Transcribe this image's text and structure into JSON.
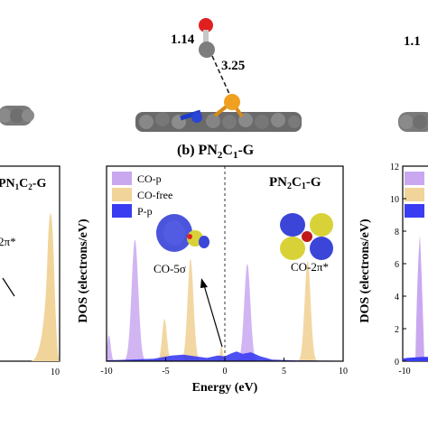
{
  "structure": {
    "bond_co": "1.14",
    "distance": "3.25",
    "bond_co_right": "1.1"
  },
  "left_panel": {
    "title_prefix": "PN",
    "title_sub1": "1",
    "title_mid": "C",
    "title_sub2": "2",
    "title_suffix": "-G",
    "orbital_label_fragment": "2π*",
    "x_tick_10": "10"
  },
  "right_panel": {
    "y_ticks": [
      "12",
      "10",
      "8",
      "6",
      "4",
      "2",
      "0"
    ],
    "y_label": "DOS (electrons/eV)",
    "x_ticks": [
      "-10"
    ]
  },
  "chart_data": {
    "type": "area",
    "panel_caption": {
      "prefix": "(b) PN",
      "sub1": "2",
      "mid": "C",
      "sub2": "1",
      "suffix": "-G"
    },
    "inset_title": {
      "prefix": "PN",
      "sub1": "2",
      "mid": "C",
      "sub2": "1",
      "suffix": "-G"
    },
    "xlabel": "Energy (eV)",
    "ylabel": "DOS (electrons/eV)",
    "xlim": [
      -10,
      10
    ],
    "ylim": [
      0,
      12
    ],
    "x_ticks": [
      -10,
      -5,
      0,
      5,
      10
    ],
    "y_ticks": [
      0,
      2,
      4,
      6,
      8,
      10,
      12
    ],
    "fermi_level": 0,
    "legend_position": "top-left",
    "series": [
      {
        "name": "CO-p",
        "color": "#c9a8f0",
        "peaks": [
          {
            "center": -9.8,
            "height": 1.6,
            "width": 0.15
          },
          {
            "center": -7.6,
            "height": 7.5,
            "width": 0.28
          },
          {
            "center": -5.2,
            "height": 0.6,
            "width": 0.18
          },
          {
            "center": 1.9,
            "height": 6.0,
            "width": 0.26
          }
        ]
      },
      {
        "name": "CO-free",
        "color": "#f1d49a",
        "peaks": [
          {
            "center": -5.1,
            "height": 2.6,
            "width": 0.2
          },
          {
            "center": -2.9,
            "height": 6.3,
            "width": 0.25
          },
          {
            "center": -0.3,
            "height": 0.9,
            "width": 0.12
          },
          {
            "center": 7.0,
            "height": 6.2,
            "width": 0.25
          }
        ]
      },
      {
        "name": "P-p",
        "color": "#3a3cf2",
        "points": [
          [
            -10,
            0.05
          ],
          [
            -8,
            0.1
          ],
          [
            -6,
            0.15
          ],
          [
            -4.5,
            0.35
          ],
          [
            -3.5,
            0.4
          ],
          [
            -2.5,
            0.3
          ],
          [
            -1.5,
            0.2
          ],
          [
            -0.6,
            0.35
          ],
          [
            0,
            0.3
          ],
          [
            0.6,
            0.5
          ],
          [
            1.0,
            0.6
          ],
          [
            1.5,
            0.45
          ],
          [
            2.2,
            0.55
          ],
          [
            3.0,
            0.3
          ],
          [
            4.0,
            0.1
          ],
          [
            6.0,
            0.05
          ],
          [
            10.0,
            0.03
          ]
        ]
      }
    ],
    "annotations": [
      {
        "text": "CO-5σ"
      },
      {
        "text": "CO-2π*"
      }
    ]
  }
}
